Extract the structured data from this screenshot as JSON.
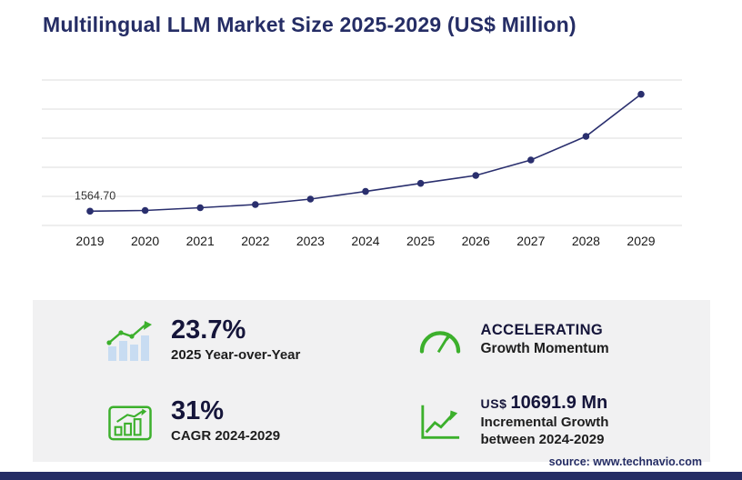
{
  "title": "Multilingual LLM Market Size 2025-2029 (US$ Million)",
  "source": "source: www.technavio.com",
  "chart_data": {
    "type": "line",
    "title": "Multilingual LLM Market Size 2025-2029 (US$ Million)",
    "x": [
      "2019",
      "2020",
      "2021",
      "2022",
      "2023",
      "2024",
      "2025",
      "2026",
      "2027",
      "2028",
      "2029"
    ],
    "values": [
      1564.7,
      1650,
      1950,
      2300,
      2900,
      3741.4,
      4628.1,
      5500,
      7200,
      9800,
      14433.3
    ],
    "point_label": "1564.70",
    "labeled_point_index": 0,
    "xlabel": "",
    "ylabel": "",
    "ylim": [
      0,
      16000
    ],
    "gridlines": 6,
    "grid": true,
    "legend_position": "none",
    "line_color": "#2a2f6e",
    "point_color": "#2a2f6e"
  },
  "stats": [
    {
      "icon": "bar-chart-growth-icon",
      "value": "23.7%",
      "label": "2025 Year-over-Year"
    },
    {
      "icon": "speedometer-icon",
      "value": "ACCELERATING",
      "label": "Growth Momentum"
    },
    {
      "icon": "bar-graph-box-icon",
      "value": "31%",
      "label": "CAGR 2024-2029"
    },
    {
      "icon": "line-chart-up-icon",
      "value_prefix": "US$",
      "value": "10691.9 Mn",
      "label": "Incremental Growth",
      "label2": "between 2024-2029"
    }
  ],
  "colors": {
    "accent_navy": "#252d65",
    "accent_green": "#3cb02c",
    "panel_bg": "#f1f1f2",
    "icon_bar_blue": "#c8dcf2",
    "gridline": "#dcdcdc"
  }
}
